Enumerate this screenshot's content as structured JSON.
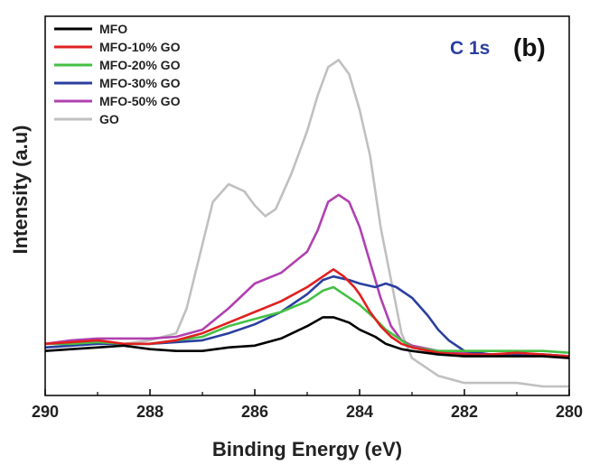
{
  "chart_data": {
    "type": "line",
    "title": "",
    "xlabel": "Binding Energy (eV)",
    "ylabel": "Intensity (a.u)",
    "xlim": [
      290,
      280
    ],
    "ylim": [
      0,
      100
    ],
    "x_reversed": true,
    "xticks": [
      "290",
      "288",
      "286",
      "284",
      "282",
      "280"
    ],
    "grid": false,
    "legend_position": "top-left",
    "annotations": {
      "peak_label": "C 1s",
      "peak_label_color": "#2b3fa0",
      "panel_label": "(b)"
    },
    "series": [
      {
        "name": "MFO",
        "color": "#000000",
        "points": [
          [
            290,
            10
          ],
          [
            289.5,
            10.5
          ],
          [
            289,
            11
          ],
          [
            288.5,
            11.5
          ],
          [
            288,
            10.5
          ],
          [
            287.5,
            10
          ],
          [
            287,
            10
          ],
          [
            286.5,
            11
          ],
          [
            286,
            11.5
          ],
          [
            285.5,
            13.5
          ],
          [
            285,
            17
          ],
          [
            284.7,
            19.5
          ],
          [
            284.5,
            19.5
          ],
          [
            284.2,
            18
          ],
          [
            284,
            16
          ],
          [
            283.7,
            14
          ],
          [
            283.5,
            12
          ],
          [
            283.2,
            10.5
          ],
          [
            283,
            10
          ],
          [
            282.5,
            9
          ],
          [
            282,
            8.5
          ],
          [
            281.5,
            8.5
          ],
          [
            281,
            8.5
          ],
          [
            280.5,
            8.5
          ],
          [
            280,
            8
          ]
        ]
      },
      {
        "name": "MFO-10% GO",
        "color": "#e02020",
        "points": [
          [
            290,
            12
          ],
          [
            289.5,
            12.5
          ],
          [
            289,
            13
          ],
          [
            288.5,
            12
          ],
          [
            288,
            12
          ],
          [
            287.5,
            13
          ],
          [
            287,
            15
          ],
          [
            286.5,
            18
          ],
          [
            286,
            21
          ],
          [
            285.5,
            24
          ],
          [
            285,
            28
          ],
          [
            284.7,
            31
          ],
          [
            284.5,
            33
          ],
          [
            284.3,
            31
          ],
          [
            284.1,
            28
          ],
          [
            284,
            26
          ],
          [
            283.8,
            21
          ],
          [
            283.6,
            17
          ],
          [
            283.4,
            14
          ],
          [
            283.2,
            12
          ],
          [
            283,
            11
          ],
          [
            282.5,
            9.5
          ],
          [
            282,
            9
          ],
          [
            281.5,
            9
          ],
          [
            281,
            9.5
          ],
          [
            280.5,
            9
          ],
          [
            280,
            8.5
          ]
        ]
      },
      {
        "name": "MFO-20% GO",
        "color": "#44c044",
        "points": [
          [
            290,
            12
          ],
          [
            289.5,
            12
          ],
          [
            289,
            12.5
          ],
          [
            288.5,
            12
          ],
          [
            288,
            12
          ],
          [
            287.5,
            13
          ],
          [
            287,
            14
          ],
          [
            286.5,
            17
          ],
          [
            286,
            19
          ],
          [
            285.5,
            21
          ],
          [
            285,
            24
          ],
          [
            284.7,
            27
          ],
          [
            284.5,
            28
          ],
          [
            284.3,
            26
          ],
          [
            284,
            23
          ],
          [
            283.7,
            19
          ],
          [
            283.5,
            16
          ],
          [
            283.2,
            13
          ],
          [
            283,
            11
          ],
          [
            282.5,
            10
          ],
          [
            282,
            10
          ],
          [
            281.5,
            10
          ],
          [
            281,
            10
          ],
          [
            280.5,
            10
          ],
          [
            280,
            9.5
          ]
        ]
      },
      {
        "name": "MFO-30% GO",
        "color": "#2b3fa0",
        "points": [
          [
            290,
            11
          ],
          [
            289.5,
            11.5
          ],
          [
            289,
            12
          ],
          [
            288.5,
            12
          ],
          [
            288,
            12
          ],
          [
            287.5,
            12.5
          ],
          [
            287,
            13
          ],
          [
            286.5,
            15
          ],
          [
            286,
            17.5
          ],
          [
            285.5,
            21
          ],
          [
            285,
            26
          ],
          [
            284.7,
            30
          ],
          [
            284.5,
            31
          ],
          [
            284.2,
            30
          ],
          [
            284,
            29
          ],
          [
            283.7,
            28
          ],
          [
            283.5,
            29
          ],
          [
            283.3,
            28
          ],
          [
            283,
            25
          ],
          [
            282.7,
            20
          ],
          [
            282.5,
            16
          ],
          [
            282.3,
            13
          ],
          [
            282,
            10
          ],
          [
            281.5,
            9
          ],
          [
            281,
            9
          ],
          [
            280.5,
            9
          ],
          [
            280,
            8.5
          ]
        ]
      },
      {
        "name": "MFO-50% GO",
        "color": "#b040b0",
        "points": [
          [
            290,
            12
          ],
          [
            289.5,
            13
          ],
          [
            289,
            13.5
          ],
          [
            288.5,
            13.5
          ],
          [
            288,
            13.5
          ],
          [
            287.5,
            14
          ],
          [
            287,
            16
          ],
          [
            286.5,
            22
          ],
          [
            286,
            29
          ],
          [
            285.5,
            32
          ],
          [
            285,
            38
          ],
          [
            284.8,
            44
          ],
          [
            284.6,
            52
          ],
          [
            284.4,
            54
          ],
          [
            284.2,
            52
          ],
          [
            284,
            45
          ],
          [
            283.8,
            35
          ],
          [
            283.6,
            25
          ],
          [
            283.4,
            17
          ],
          [
            283.2,
            13
          ],
          [
            283,
            11.5
          ],
          [
            282.5,
            10
          ],
          [
            282,
            9.5
          ],
          [
            281.5,
            9
          ],
          [
            281,
            9
          ],
          [
            280.5,
            9
          ],
          [
            280,
            8.5
          ]
        ]
      },
      {
        "name": "GO",
        "color": "#c0c0c0",
        "points": [
          [
            290,
            11
          ],
          [
            289.5,
            11.5
          ],
          [
            289,
            12
          ],
          [
            288.5,
            12
          ],
          [
            288,
            13
          ],
          [
            287.5,
            15
          ],
          [
            287.3,
            22
          ],
          [
            287,
            40
          ],
          [
            286.8,
            52
          ],
          [
            286.5,
            57
          ],
          [
            286.2,
            55
          ],
          [
            286,
            51
          ],
          [
            285.8,
            48
          ],
          [
            285.6,
            50
          ],
          [
            285.3,
            60
          ],
          [
            285,
            72
          ],
          [
            284.8,
            82
          ],
          [
            284.6,
            90
          ],
          [
            284.4,
            92
          ],
          [
            284.2,
            88
          ],
          [
            284,
            78
          ],
          [
            283.8,
            65
          ],
          [
            283.6,
            45
          ],
          [
            283.4,
            30
          ],
          [
            283.2,
            15
          ],
          [
            283,
            8
          ],
          [
            282.5,
            3
          ],
          [
            282,
            1
          ],
          [
            281.5,
            1
          ],
          [
            281,
            1
          ],
          [
            280.5,
            0
          ],
          [
            280,
            0
          ]
        ]
      }
    ]
  }
}
